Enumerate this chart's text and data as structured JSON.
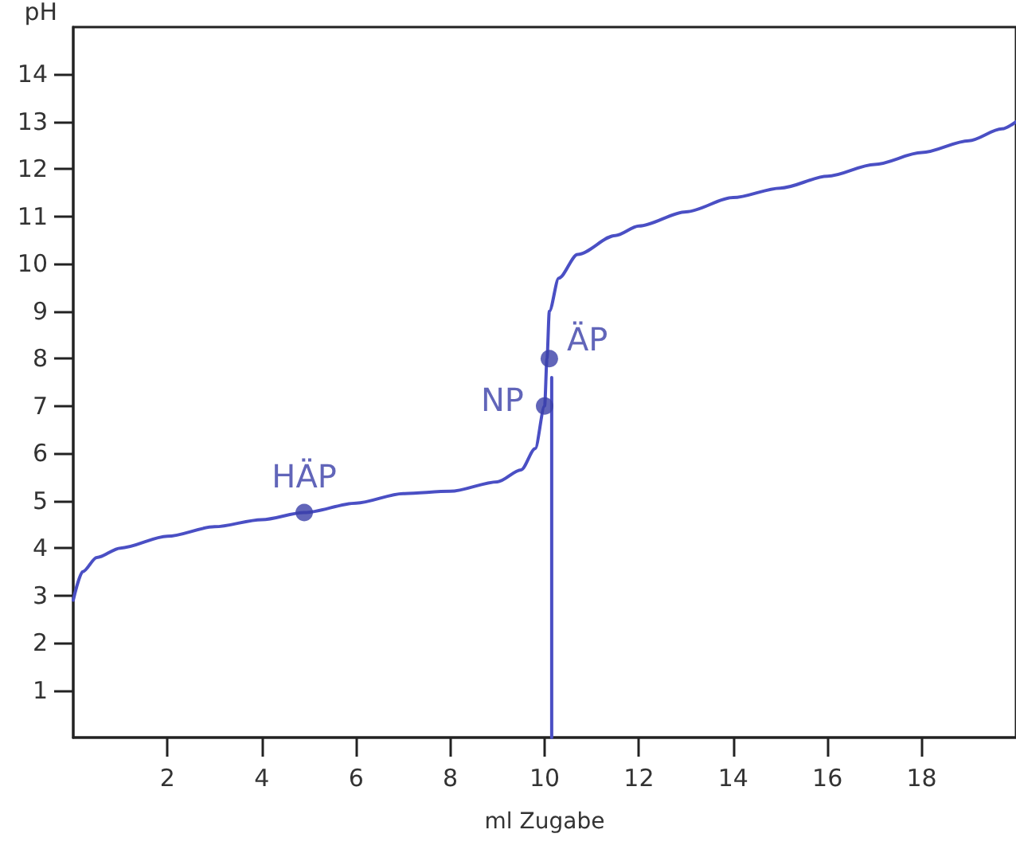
{
  "chart_data": {
    "type": "line",
    "xlabel": "ml Zugabe",
    "ylabel": "pH",
    "xlim": [
      0,
      20
    ],
    "xticks": [
      2,
      4,
      6,
      8,
      10,
      12,
      14,
      16,
      18
    ],
    "ylim": [
      0,
      15
    ],
    "yticks": [
      1,
      2,
      3,
      4,
      5,
      6,
      7,
      8,
      9,
      10,
      11,
      12,
      13,
      14
    ],
    "grid": false,
    "line_style": "solid",
    "series": [
      {
        "color": "#4a4fc4",
        "marker": "none",
        "x": [
          0,
          0.2,
          0.5,
          1,
          2,
          3,
          4,
          4.9,
          6,
          7,
          8,
          9,
          9.5,
          9.8,
          10,
          10.05,
          10.1,
          10.3,
          10.7,
          11.5,
          12,
          13,
          14,
          15,
          16,
          17,
          18,
          19,
          19.7,
          20
        ],
        "values": [
          2.9,
          3.5,
          3.8,
          4.0,
          4.25,
          4.45,
          4.6,
          4.75,
          4.95,
          5.15,
          5.2,
          5.4,
          5.65,
          6.1,
          7,
          8,
          9,
          9.7,
          10.2,
          10.6,
          10.8,
          11.1,
          11.4,
          11.6,
          11.85,
          12.1,
          12.35,
          12.6,
          12.85,
          13.0
        ]
      },
      {
        "color": "#4a4fc4",
        "marker": "none",
        "x": [
          10.15,
          10.15
        ],
        "values": [
          0,
          7.6
        ]
      },
      {
        "type": "scatter",
        "color": "#3a3fa8",
        "marker": "circle",
        "x": [
          4.9,
          10,
          10.1
        ],
        "values": [
          4.75,
          7,
          8
        ]
      }
    ],
    "annotations": [
      {
        "text": "HÄP",
        "x": 4.9,
        "y": 4.75
      },
      {
        "text": "NP",
        "x": 10,
        "y": 7
      },
      {
        "text": "ÄP",
        "x": 10.1,
        "y": 8
      }
    ]
  }
}
